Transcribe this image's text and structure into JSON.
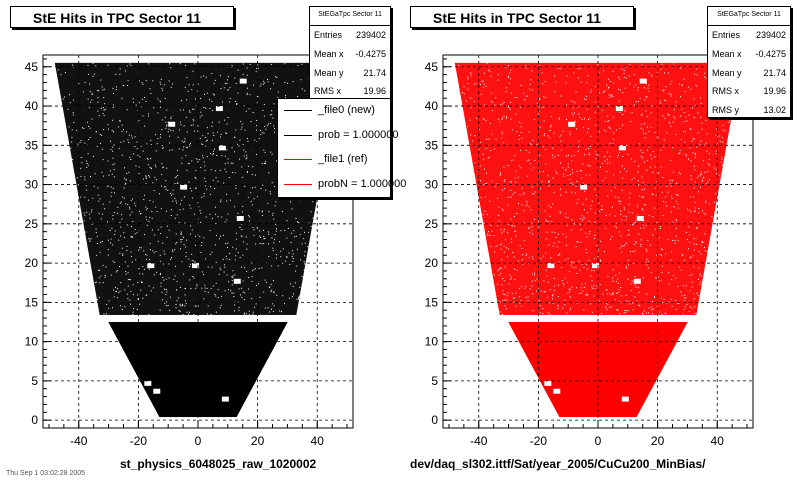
{
  "panels": [
    {
      "title": "StE Hits in TPC Sector 11",
      "stats_name": "StEGaTpc Sector 11",
      "stats": [
        {
          "key": "Entries",
          "value": "239402"
        },
        {
          "key": "Mean x",
          "value": "-0.4275"
        },
        {
          "key": "Mean y",
          "value": "21.74"
        },
        {
          "key": "RMS x",
          "value": "19.96"
        }
      ],
      "legend": [
        {
          "label": "_file0 (new)",
          "color": "#000000"
        },
        {
          "label": "prob = 1.000000",
          "color": "#000000"
        },
        {
          "label": "_file1 (ref)",
          "color": "#ff0000"
        },
        {
          "label": "probN = 1.000000",
          "color": "#ff0000"
        }
      ],
      "xlabel": "st_physics_6048025_raw_1020002",
      "color": "#000000"
    },
    {
      "title": "StE Hits in TPC Sector 11",
      "stats_name": "StEGaTpc Sector 11",
      "stats": [
        {
          "key": "Entries",
          "value": "239402"
        },
        {
          "key": "Mean x",
          "value": "-0.4275"
        },
        {
          "key": "Mean y",
          "value": "21.74"
        },
        {
          "key": "RMS x",
          "value": "19.96"
        },
        {
          "key": "RMS y",
          "value": "13.02"
        }
      ],
      "xlabel": "dev/daq_sl302.ittf/Sat/year_2005/CuCu200_MinBias/",
      "color": "#ff0000"
    }
  ],
  "footer": "Thu Sep 1 03:02:28 2005",
  "chart_data": [
    {
      "type": "scatter",
      "title": "StE Hits in TPC Sector 11",
      "xlabel": "st_physics_6048025_raw_1020002",
      "ylabel": "",
      "xlim": [
        -52,
        52
      ],
      "ylim": [
        -1,
        46.5
      ],
      "x_ticks": [
        -40,
        -20,
        0,
        20,
        40
      ],
      "y_ticks": [
        0,
        5,
        10,
        15,
        20,
        25,
        30,
        35,
        40,
        45
      ],
      "grid": true,
      "legend_position": "top-right",
      "series": [
        {
          "name": "_file0 (new)",
          "color": "#000000",
          "outer_rows_x_range_at_y": [
            [
              13.5,
              -33,
              33
            ],
            [
              45.5,
              -48,
              48
            ]
          ],
          "inner_rows_x_range_at_y": [
            [
              0.5,
              -13,
              13
            ],
            [
              12.5,
              -30,
              30
            ]
          ],
          "gap_y": [
            12.5,
            13.5
          ]
        }
      ]
    },
    {
      "type": "scatter",
      "title": "StE Hits in TPC Sector 11",
      "xlabel": "dev/daq_sl302.ittf/Sat/year_2005/CuCu200_MinBias/",
      "ylabel": "",
      "xlim": [
        -52,
        52
      ],
      "ylim": [
        -1,
        46.5
      ],
      "x_ticks": [
        -40,
        -20,
        0,
        20,
        40
      ],
      "y_ticks": [
        0,
        5,
        10,
        15,
        20,
        25,
        30,
        35,
        40,
        45
      ],
      "grid": true,
      "series": [
        {
          "name": "_file1 (ref)",
          "color": "#ff0000",
          "outer_rows_x_range_at_y": [
            [
              13.5,
              -33,
              33
            ],
            [
              45.5,
              -48,
              48
            ]
          ],
          "inner_rows_x_range_at_y": [
            [
              0.5,
              -13,
              13
            ],
            [
              12.5,
              -30,
              30
            ]
          ],
          "gap_y": [
            12.5,
            13.5
          ]
        }
      ]
    }
  ]
}
